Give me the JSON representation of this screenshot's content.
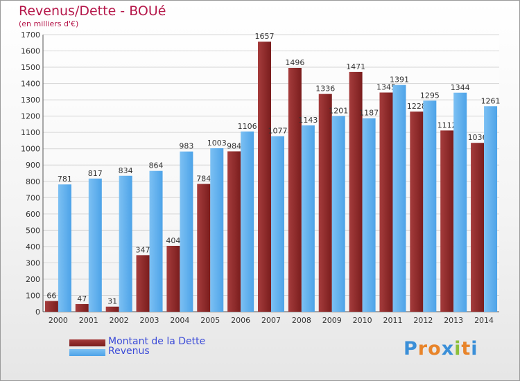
{
  "title": "Revenus/Dette - BOUé",
  "subtitle": "(en milliers d'€)",
  "logo_text": "Proxiti",
  "colors": {
    "dette": "#7a1d1d",
    "dette_light": "#a53c3c",
    "revenus": "#4da3e8",
    "revenus_light": "#7cc0f3",
    "title": "#b5174a",
    "legend_text": "#3b4bd8"
  },
  "legend": {
    "dette_label": "Montant de la Dette",
    "revenus_label": "Revenus"
  },
  "chart_data": {
    "type": "bar",
    "categories": [
      "2000",
      "2001",
      "2002",
      "2003",
      "2004",
      "2005",
      "2006",
      "2007",
      "2008",
      "2009",
      "2010",
      "2011",
      "2012",
      "2013",
      "2014"
    ],
    "series": [
      {
        "name": "Montant de la Dette",
        "values": [
          66,
          47,
          31,
          347,
          404,
          784,
          984,
          1657,
          1496,
          1336,
          1471,
          1345,
          1228,
          1112,
          1036
        ],
        "labels": [
          "66",
          "47",
          "31",
          "347",
          "404",
          "784",
          "984",
          "1657",
          "1496",
          "1336",
          "1471",
          "1345",
          "1228",
          "1112",
          "1036"
        ]
      },
      {
        "name": "Revenus",
        "values": [
          781,
          817,
          834,
          864,
          983,
          1003,
          1106,
          1077,
          1143,
          1201,
          1187,
          1391,
          1295,
          1344,
          1261
        ],
        "labels": [
          "781",
          "817",
          "834",
          "864",
          "983",
          "1003",
          "1106",
          "1077",
          "1143",
          "1201",
          "1187",
          "1391",
          "1295",
          "1344",
          "1261"
        ]
      }
    ],
    "yticks": [
      0,
      100,
      200,
      300,
      400,
      500,
      600,
      700,
      800,
      900,
      1000,
      1100,
      1200,
      1300,
      1400,
      1500,
      1600,
      1700
    ],
    "ylim": [
      0,
      1700
    ],
    "grid": true,
    "legend_position": "bottom-left"
  }
}
